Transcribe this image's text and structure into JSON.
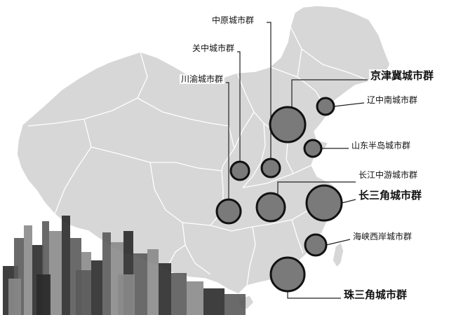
{
  "map": {
    "colors": {
      "background": "#ffffff",
      "land": "#d7d7d7",
      "border": "#ffffff",
      "circle_fill": "#7a7a7a",
      "circle_stroke": "#111111",
      "leader": "#222222",
      "city_dark": "#2a2a2a",
      "city_mid": "#5a5a5a",
      "city_light": "#8a8a8a"
    },
    "clusters": [
      {
        "id": "zhongyuan",
        "name": "中原城市群",
        "emphasis": false
      },
      {
        "id": "guanzhong",
        "name": "关中城市群",
        "emphasis": false
      },
      {
        "id": "chengyu",
        "name": "川渝城市群",
        "emphasis": false
      },
      {
        "id": "jingjinji",
        "name": "京津冀城市群",
        "emphasis": true
      },
      {
        "id": "liaozhongnan",
        "name": "辽中南城市群",
        "emphasis": false
      },
      {
        "id": "shandong",
        "name": "山东半岛城市群",
        "emphasis": false
      },
      {
        "id": "changjiang",
        "name": "长江中游城市群",
        "emphasis": false
      },
      {
        "id": "changsanjiao",
        "name": "长三角城市群",
        "emphasis": true
      },
      {
        "id": "haixia",
        "name": "海峡西岸城市群",
        "emphasis": false
      },
      {
        "id": "zhusanjiao",
        "name": "珠三角城市群",
        "emphasis": true
      }
    ]
  }
}
